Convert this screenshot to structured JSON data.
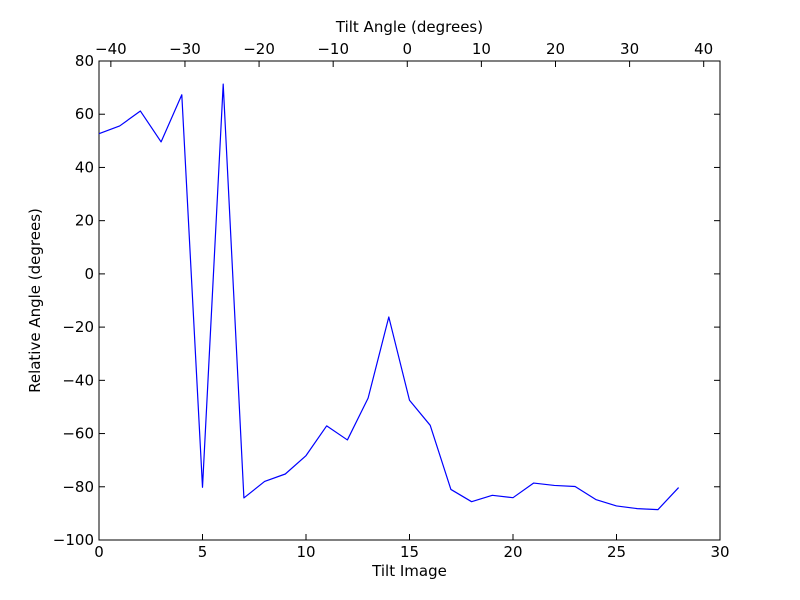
{
  "chart_data": {
    "type": "line",
    "title": "",
    "xlabel": "Tilt Image",
    "ylabel": "Relative Angle (degrees)",
    "x2label": "Tilt Angle (degrees)",
    "xlim": [
      0,
      30
    ],
    "ylim": [
      -100,
      80
    ],
    "x2lim": [
      -41.6,
      42.2
    ],
    "xticks": [
      0,
      5,
      10,
      15,
      20,
      25,
      30
    ],
    "yticks": [
      -100,
      -80,
      -60,
      -40,
      -20,
      0,
      20,
      40,
      60,
      80
    ],
    "x2ticks": [
      -40,
      -30,
      -20,
      -10,
      0,
      10,
      20,
      30,
      40
    ],
    "grid": false,
    "line_color": "#0000ff",
    "series": [
      {
        "x": [
          0,
          1,
          2,
          3,
          4,
          5,
          6,
          7,
          8,
          9,
          10,
          11,
          12,
          13,
          14,
          15,
          16,
          17,
          18,
          19,
          20,
          21,
          22,
          23,
          24,
          25,
          26,
          27,
          28
        ],
        "values": [
          52.7,
          55.6,
          61.2,
          49.6,
          67.3,
          -80.2,
          71.3,
          -84.2,
          -78.0,
          -75.2,
          -68.3,
          -57.1,
          -62.4,
          -46.7,
          -16.2,
          -47.5,
          -56.9,
          -81.0,
          -85.6,
          -83.2,
          -84.1,
          -78.6,
          -79.5,
          -79.9,
          -84.8,
          -87.2,
          -88.2,
          -88.6,
          -80.3
        ]
      }
    ]
  }
}
